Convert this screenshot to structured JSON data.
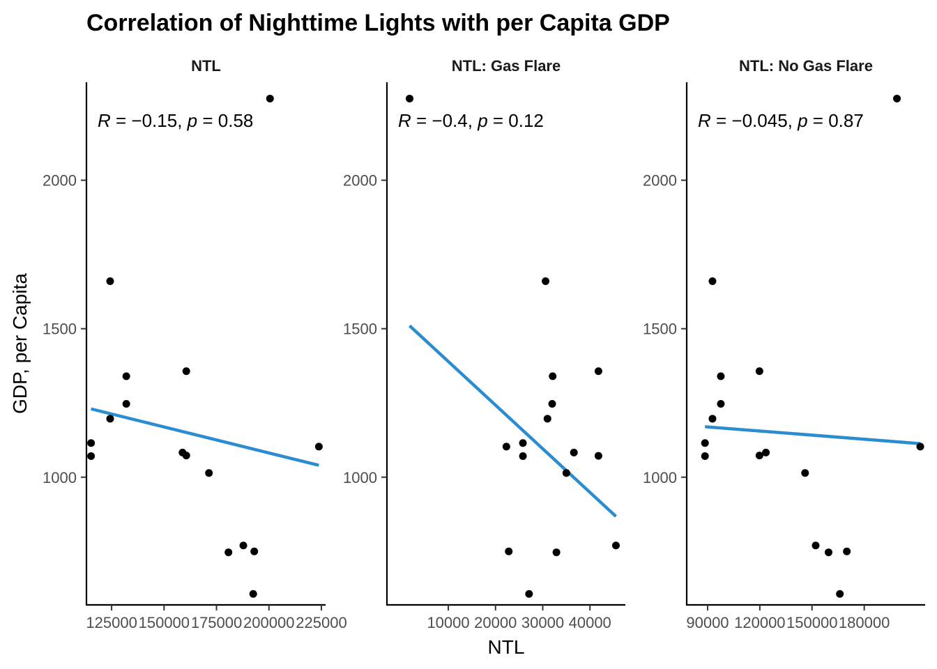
{
  "chart_data": {
    "type": "scatter",
    "title": "Correlation of Nighttime Lights with per Capita GDP",
    "xlabel": "NTL",
    "ylabel": "GDP, per Capita",
    "grid": false,
    "legend": "none",
    "point_color": "#000000",
    "line_color": "#2B8CCF",
    "y_ticks": [
      1000,
      1500,
      2000
    ],
    "ylim": [
      570,
      2330
    ],
    "panels": [
      {
        "name": "NTL",
        "annotation": {
          "R": "−0.15",
          "p": "0.58"
        },
        "xlim": [
          113000,
          227000
        ],
        "x_ticks": [
          125000,
          150000,
          175000,
          200000,
          225000
        ],
        "x_tick_labels": [
          "125000",
          "150000",
          "175000",
          "200000",
          "225000"
        ],
        "points": [
          {
            "x": 200500,
            "y": 2275
          },
          {
            "x": 124300,
            "y": 1660
          },
          {
            "x": 160600,
            "y": 1357
          },
          {
            "x": 132000,
            "y": 1340
          },
          {
            "x": 132000,
            "y": 1247
          },
          {
            "x": 124300,
            "y": 1197
          },
          {
            "x": 115200,
            "y": 1115
          },
          {
            "x": 223800,
            "y": 1103
          },
          {
            "x": 158800,
            "y": 1083
          },
          {
            "x": 160600,
            "y": 1073
          },
          {
            "x": 115200,
            "y": 1071
          },
          {
            "x": 171400,
            "y": 1014
          },
          {
            "x": 187800,
            "y": 770
          },
          {
            "x": 193000,
            "y": 750
          },
          {
            "x": 180700,
            "y": 747
          },
          {
            "x": 192500,
            "y": 607
          }
        ],
        "fit": {
          "x": [
            115200,
            223800
          ],
          "y": [
            1230,
            1040
          ]
        }
      },
      {
        "name": "NTL: Gas Flare",
        "annotation": {
          "R": "−0.4",
          "p": "0.12"
        },
        "xlim": [
          -3000,
          47500
        ],
        "x_ticks": [
          10000,
          20000,
          30000,
          40000
        ],
        "x_tick_labels": [
          "10000",
          "20000",
          "30000",
          "40000"
        ],
        "points": [
          {
            "x": 1800,
            "y": 2275
          },
          {
            "x": 30600,
            "y": 1660
          },
          {
            "x": 41800,
            "y": 1357
          },
          {
            "x": 32100,
            "y": 1340
          },
          {
            "x": 32000,
            "y": 1247
          },
          {
            "x": 31000,
            "y": 1197
          },
          {
            "x": 25800,
            "y": 1115
          },
          {
            "x": 22300,
            "y": 1103
          },
          {
            "x": 36600,
            "y": 1083
          },
          {
            "x": 25800,
            "y": 1071
          },
          {
            "x": 41800,
            "y": 1072
          },
          {
            "x": 35000,
            "y": 1014
          },
          {
            "x": 45500,
            "y": 770
          },
          {
            "x": 22800,
            "y": 750
          },
          {
            "x": 32900,
            "y": 747
          },
          {
            "x": 27100,
            "y": 607
          }
        ],
        "fit": {
          "x": [
            1800,
            45500
          ],
          "y": [
            1510,
            868
          ]
        }
      },
      {
        "name": "NTL: No Gas Flare",
        "annotation": {
          "R": "−0.045",
          "p": "0.87"
        },
        "xlim": [
          78000,
          215000
        ],
        "x_ticks": [
          90000,
          120000,
          150000,
          180000
        ],
        "x_tick_labels": [
          "90000",
          "120000",
          "150000",
          "180000"
        ],
        "points": [
          {
            "x": 198800,
            "y": 2275
          },
          {
            "x": 92800,
            "y": 1660
          },
          {
            "x": 119800,
            "y": 1357
          },
          {
            "x": 97600,
            "y": 1340
          },
          {
            "x": 97600,
            "y": 1247
          },
          {
            "x": 92800,
            "y": 1197
          },
          {
            "x": 88500,
            "y": 1115
          },
          {
            "x": 212200,
            "y": 1103
          },
          {
            "x": 123500,
            "y": 1083
          },
          {
            "x": 119800,
            "y": 1073
          },
          {
            "x": 88500,
            "y": 1071
          },
          {
            "x": 146000,
            "y": 1014
          },
          {
            "x": 152100,
            "y": 770
          },
          {
            "x": 170000,
            "y": 750
          },
          {
            "x": 159500,
            "y": 747
          },
          {
            "x": 166000,
            "y": 607
          }
        ],
        "fit": {
          "x": [
            88500,
            212200
          ],
          "y": [
            1170,
            1113
          ]
        }
      }
    ]
  }
}
